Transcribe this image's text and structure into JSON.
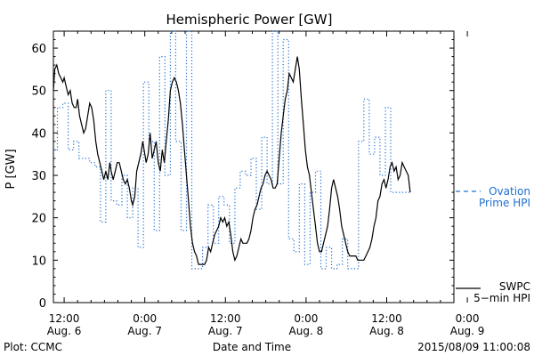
{
  "chart_data": {
    "type": "line",
    "title": "Hemispheric Power [GW]",
    "xlabel": "Date and Time",
    "ylabel": "P [GW]",
    "ylim": [
      0,
      64
    ],
    "y_ticks": [
      0,
      10,
      20,
      30,
      40,
      50,
      60
    ],
    "x_unit": "hours since 2015-08-06 00:00 UT",
    "xlim": [
      10.4,
      70.0
    ],
    "x_ticks": [
      {
        "x": 12,
        "line1": "12:00",
        "line2": "Aug. 6"
      },
      {
        "x": 24,
        "line1": "0:00",
        "line2": "Aug. 7"
      },
      {
        "x": 36,
        "line1": "12:00",
        "line2": "Aug. 7"
      },
      {
        "x": 48,
        "line1": "0:00",
        "line2": "Aug. 8"
      },
      {
        "x": 60,
        "line1": "12:00",
        "line2": "Aug. 8"
      },
      {
        "x": 72,
        "line1": "0:00",
        "line2": "Aug. 9"
      }
    ],
    "grid": false,
    "legend_placement": "right",
    "series": [
      {
        "name": "SWPC 5-min HPI",
        "legend_lines": [
          "SWPC",
          "5−min HPI"
        ],
        "color": "#000000",
        "style": "solid",
        "points": [
          [
            10.4,
            50
          ],
          [
            10.6,
            55
          ],
          [
            10.9,
            56
          ],
          [
            11.2,
            54
          ],
          [
            11.5,
            53
          ],
          [
            11.8,
            52
          ],
          [
            12.0,
            53
          ],
          [
            12.3,
            51
          ],
          [
            12.6,
            49
          ],
          [
            12.9,
            50
          ],
          [
            13.2,
            47
          ],
          [
            13.5,
            46
          ],
          [
            13.8,
            46
          ],
          [
            14.0,
            48
          ],
          [
            14.3,
            44
          ],
          [
            14.6,
            42
          ],
          [
            14.9,
            40
          ],
          [
            15.2,
            41
          ],
          [
            15.5,
            44
          ],
          [
            15.8,
            47
          ],
          [
            16.1,
            46
          ],
          [
            16.4,
            43
          ],
          [
            16.7,
            38
          ],
          [
            17.0,
            35
          ],
          [
            17.3,
            33
          ],
          [
            17.6,
            31
          ],
          [
            17.9,
            29
          ],
          [
            18.2,
            31
          ],
          [
            18.5,
            29
          ],
          [
            18.8,
            33
          ],
          [
            19.0,
            31
          ],
          [
            19.3,
            29
          ],
          [
            19.6,
            31
          ],
          [
            19.9,
            33
          ],
          [
            20.2,
            33
          ],
          [
            20.5,
            31
          ],
          [
            20.8,
            29
          ],
          [
            21.1,
            28
          ],
          [
            21.4,
            29
          ],
          [
            21.7,
            27
          ],
          [
            22.0,
            24
          ],
          [
            22.2,
            23
          ],
          [
            22.5,
            25
          ],
          [
            22.8,
            31
          ],
          [
            23.1,
            33
          ],
          [
            23.4,
            35
          ],
          [
            23.7,
            38
          ],
          [
            24.0,
            35
          ],
          [
            24.2,
            33
          ],
          [
            24.5,
            35
          ],
          [
            24.8,
            40
          ],
          [
            25.1,
            34
          ],
          [
            25.4,
            36
          ],
          [
            25.7,
            38
          ],
          [
            26.0,
            33
          ],
          [
            26.3,
            31
          ],
          [
            26.6,
            36
          ],
          [
            26.9,
            33
          ],
          [
            27.2,
            38
          ],
          [
            27.5,
            43
          ],
          [
            27.8,
            50
          ],
          [
            28.1,
            52
          ],
          [
            28.4,
            53
          ],
          [
            28.7,
            52
          ],
          [
            29.0,
            50
          ],
          [
            29.3,
            47
          ],
          [
            29.6,
            42
          ],
          [
            29.9,
            36
          ],
          [
            30.2,
            30
          ],
          [
            30.5,
            24
          ],
          [
            30.8,
            18
          ],
          [
            31.1,
            14
          ],
          [
            31.4,
            12
          ],
          [
            31.7,
            11
          ],
          [
            32.0,
            9
          ],
          [
            32.3,
            9
          ],
          [
            32.6,
            9
          ],
          [
            32.9,
            9
          ],
          [
            33.2,
            10
          ],
          [
            33.5,
            13
          ],
          [
            33.8,
            12
          ],
          [
            34.1,
            14
          ],
          [
            34.4,
            16
          ],
          [
            34.7,
            17
          ],
          [
            35.0,
            18
          ],
          [
            35.3,
            20
          ],
          [
            35.6,
            19
          ],
          [
            35.9,
            20
          ],
          [
            36.2,
            18
          ],
          [
            36.5,
            19
          ],
          [
            36.8,
            16
          ],
          [
            37.1,
            12
          ],
          [
            37.4,
            10
          ],
          [
            37.7,
            11
          ],
          [
            38.0,
            13
          ],
          [
            38.3,
            15
          ],
          [
            38.6,
            14
          ],
          [
            38.9,
            14
          ],
          [
            39.2,
            14
          ],
          [
            39.5,
            15
          ],
          [
            39.8,
            17
          ],
          [
            40.1,
            20
          ],
          [
            40.4,
            22
          ],
          [
            40.7,
            23
          ],
          [
            41.0,
            25
          ],
          [
            41.3,
            27
          ],
          [
            41.6,
            28
          ],
          [
            41.9,
            30
          ],
          [
            42.2,
            31
          ],
          [
            42.5,
            30
          ],
          [
            42.8,
            29
          ],
          [
            43.1,
            27
          ],
          [
            43.4,
            27
          ],
          [
            43.7,
            28
          ],
          [
            44.0,
            34
          ],
          [
            44.3,
            40
          ],
          [
            44.6,
            44
          ],
          [
            44.9,
            48
          ],
          [
            45.2,
            50
          ],
          [
            45.5,
            54
          ],
          [
            45.8,
            53
          ],
          [
            46.1,
            52
          ],
          [
            46.4,
            55
          ],
          [
            46.7,
            58
          ],
          [
            47.0,
            55
          ],
          [
            47.3,
            48
          ],
          [
            47.6,
            42
          ],
          [
            47.9,
            36
          ],
          [
            48.2,
            32
          ],
          [
            48.5,
            30
          ],
          [
            48.8,
            26
          ],
          [
            49.1,
            22
          ],
          [
            49.4,
            18
          ],
          [
            49.7,
            14
          ],
          [
            50.0,
            12
          ],
          [
            50.3,
            12
          ],
          [
            50.6,
            14
          ],
          [
            50.9,
            16
          ],
          [
            51.2,
            18
          ],
          [
            51.5,
            22
          ],
          [
            51.8,
            27
          ],
          [
            52.1,
            29
          ],
          [
            52.4,
            27
          ],
          [
            52.7,
            25
          ],
          [
            53.0,
            22
          ],
          [
            53.3,
            18
          ],
          [
            53.6,
            16
          ],
          [
            53.9,
            14
          ],
          [
            54.2,
            12
          ],
          [
            54.5,
            11
          ],
          [
            54.8,
            11
          ],
          [
            55.1,
            11
          ],
          [
            55.4,
            11
          ],
          [
            55.7,
            10
          ],
          [
            56.0,
            10
          ],
          [
            56.3,
            10
          ],
          [
            56.6,
            10
          ],
          [
            56.9,
            11
          ],
          [
            57.2,
            12
          ],
          [
            57.5,
            13
          ],
          [
            57.8,
            15
          ],
          [
            58.1,
            18
          ],
          [
            58.4,
            20
          ],
          [
            58.7,
            24
          ],
          [
            59.0,
            25
          ],
          [
            59.3,
            28
          ],
          [
            59.6,
            29
          ],
          [
            59.9,
            27
          ],
          [
            60.2,
            29
          ],
          [
            60.5,
            32
          ],
          [
            60.8,
            33
          ],
          [
            61.1,
            31
          ],
          [
            61.4,
            32
          ],
          [
            61.7,
            29
          ],
          [
            62.0,
            30
          ],
          [
            62.3,
            33
          ],
          [
            62.6,
            32
          ],
          [
            62.9,
            31
          ],
          [
            63.2,
            30
          ],
          [
            63.5,
            26
          ]
        ]
      },
      {
        "name": "Ovation Prime HPI",
        "legend_lines": [
          "Ovation",
          "Prime HPI"
        ],
        "color": "#1f6fd0",
        "style": "dotted-step",
        "points": [
          [
            10.4,
            36
          ],
          [
            11.0,
            46
          ],
          [
            11.8,
            47
          ],
          [
            12.6,
            36
          ],
          [
            13.4,
            38
          ],
          [
            14.2,
            34
          ],
          [
            15.0,
            34
          ],
          [
            15.8,
            33
          ],
          [
            16.6,
            32
          ],
          [
            17.4,
            19
          ],
          [
            18.2,
            50
          ],
          [
            19.0,
            24
          ],
          [
            19.8,
            23
          ],
          [
            20.6,
            30
          ],
          [
            21.4,
            20
          ],
          [
            22.2,
            27
          ],
          [
            23.0,
            13
          ],
          [
            23.8,
            52
          ],
          [
            24.6,
            38
          ],
          [
            25.4,
            17
          ],
          [
            26.2,
            58
          ],
          [
            27.0,
            30
          ],
          [
            27.8,
            64
          ],
          [
            28.6,
            38
          ],
          [
            29.4,
            17
          ],
          [
            30.2,
            64
          ],
          [
            31.0,
            8
          ],
          [
            31.8,
            8
          ],
          [
            32.6,
            13
          ],
          [
            33.4,
            23
          ],
          [
            34.2,
            14
          ],
          [
            35.0,
            25
          ],
          [
            35.8,
            23
          ],
          [
            36.6,
            14
          ],
          [
            37.4,
            27
          ],
          [
            38.2,
            31
          ],
          [
            39.0,
            30
          ],
          [
            39.8,
            34
          ],
          [
            40.6,
            22
          ],
          [
            41.4,
            39
          ],
          [
            42.2,
            28
          ],
          [
            43.0,
            64
          ],
          [
            43.8,
            28
          ],
          [
            44.6,
            62
          ],
          [
            45.4,
            15
          ],
          [
            46.2,
            12
          ],
          [
            47.0,
            28
          ],
          [
            47.8,
            9
          ],
          [
            48.6,
            26
          ],
          [
            49.4,
            31
          ],
          [
            50.2,
            8
          ],
          [
            51.0,
            13
          ],
          [
            51.8,
            8
          ],
          [
            52.6,
            9
          ],
          [
            53.4,
            15
          ],
          [
            54.2,
            8
          ],
          [
            55.0,
            8
          ],
          [
            55.8,
            38
          ],
          [
            56.6,
            48
          ],
          [
            57.4,
            35
          ],
          [
            58.2,
            39
          ],
          [
            59.0,
            30
          ],
          [
            59.8,
            46
          ],
          [
            60.6,
            26
          ],
          [
            61.4,
            26
          ],
          [
            62.2,
            26
          ],
          [
            63.5,
            26
          ]
        ]
      }
    ]
  },
  "footer": {
    "plot_credit": "Plot: CCMC",
    "timestamp": "2015/08/09 11:00:08"
  },
  "colors": {
    "swpc": "#000000",
    "ovation": "#1f6fd0"
  }
}
